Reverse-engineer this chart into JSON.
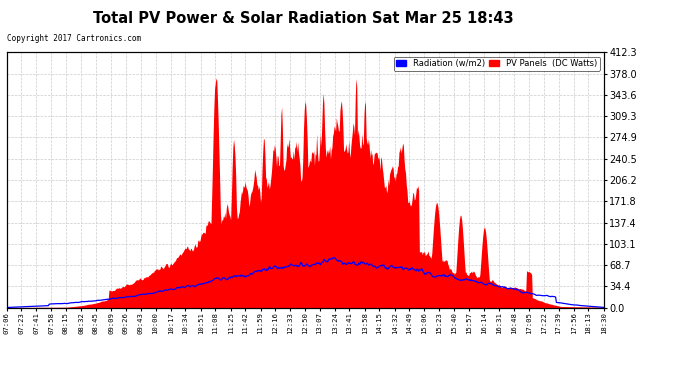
{
  "title": "Total PV Power & Solar Radiation Sat Mar 25 18:43",
  "copyright": "Copyright 2017 Cartronics.com",
  "legend_radiation": "Radiation (w/m2)",
  "legend_pv": "PV Panels  (DC Watts)",
  "ylabel_right_values": [
    0.0,
    34.4,
    68.7,
    103.1,
    137.4,
    171.8,
    206.2,
    240.5,
    274.9,
    309.3,
    343.6,
    378.0,
    412.3
  ],
  "ymax": 412.3,
  "ymin": 0.0,
  "background_color": "#ffffff",
  "plot_bg_color": "#ffffff",
  "pv_color": "#ff0000",
  "radiation_color": "#0000ff",
  "grid_color": "#cccccc",
  "title_color": "#000000",
  "copyright_color": "#000000",
  "x_tick_labels": [
    "07:06",
    "07:23",
    "07:41",
    "07:58",
    "08:15",
    "08:32",
    "08:45",
    "09:09",
    "09:26",
    "09:43",
    "10:00",
    "10:17",
    "10:34",
    "10:51",
    "11:08",
    "11:25",
    "11:42",
    "11:59",
    "12:16",
    "12:33",
    "12:50",
    "13:07",
    "13:24",
    "13:41",
    "13:58",
    "14:15",
    "14:32",
    "14:49",
    "15:06",
    "15:23",
    "15:40",
    "15:57",
    "16:14",
    "16:31",
    "16:48",
    "17:05",
    "17:22",
    "17:39",
    "17:56",
    "18:13",
    "18:30"
  ]
}
